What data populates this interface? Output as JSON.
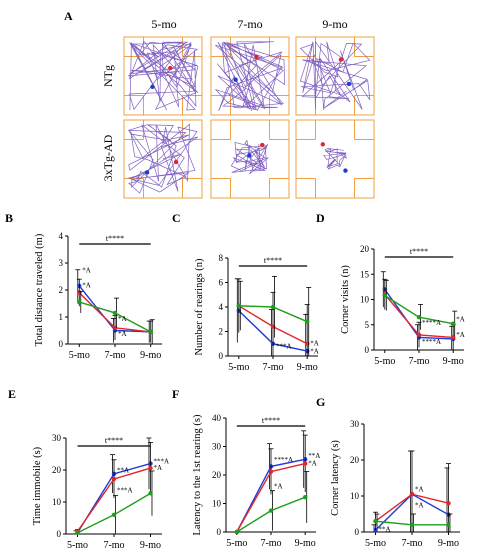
{
  "panelA": {
    "letter": "A",
    "ages": [
      "5-mo",
      "7-mo",
      "9-mo"
    ],
    "rows": [
      "NTg",
      "3xTg-AD"
    ]
  },
  "colors": {
    "blue": "#1f3bd6",
    "red": "#e0262b",
    "green": "#1e9e1e",
    "arena": "#f0a040",
    "path": "#8060c0"
  },
  "chart_data": [
    {
      "panel": "B",
      "type": "line",
      "ylabel": "Total distance traveled (m)",
      "categories": [
        "5-mo",
        "7-mo",
        "9-mo"
      ],
      "ylim": [
        0,
        4
      ],
      "yticks": [
        0,
        1,
        2,
        3,
        4
      ],
      "series": [
        {
          "color": "blue",
          "values": [
            2.15,
            0.5,
            0.45
          ],
          "err": [
            0.6,
            0.45,
            0.4
          ]
        },
        {
          "color": "red",
          "values": [
            1.9,
            0.6,
            0.45
          ],
          "err": [
            0.5,
            0.45,
            0.4
          ]
        },
        {
          "color": "green",
          "values": [
            1.55,
            1.15,
            0.45
          ],
          "err": [
            0.4,
            0.55,
            0.45
          ]
        }
      ],
      "sigbar": {
        "label": "t****"
      },
      "annotations": [
        {
          "text": "*A",
          "x": 0,
          "y": 2.65
        },
        {
          "text": "*A",
          "x": 0,
          "y": 2.1
        },
        {
          "text": "*A",
          "x": 1,
          "y": 0.85
        },
        {
          "text": "*A",
          "x": 1,
          "y": 0.3
        }
      ]
    },
    {
      "panel": "C",
      "type": "line",
      "ylabel": "Number of rearings (n)",
      "categories": [
        "5-mo",
        "7-mo",
        "9-mo"
      ],
      "ylim": [
        0,
        8
      ],
      "yticks": [
        0,
        2,
        4,
        6,
        8
      ],
      "series": [
        {
          "color": "blue",
          "values": [
            3.7,
            1.0,
            0.4
          ],
          "err": [
            2.6,
            2.8,
            3.0
          ]
        },
        {
          "color": "red",
          "values": [
            4.1,
            2.4,
            1.0
          ],
          "err": [
            2.2,
            2.8,
            3.2
          ]
        },
        {
          "color": "green",
          "values": [
            4.1,
            4.0,
            2.8
          ],
          "err": [
            2.0,
            2.5,
            2.8
          ]
        }
      ],
      "sigbar": {
        "label": "t****"
      },
      "annotations": [
        {
          "text": "***A",
          "x": 1,
          "y": 0.6
        },
        {
          "text": "*A",
          "x": 2,
          "y": 0.85
        },
        {
          "text": "*A",
          "x": 2,
          "y": 0.2
        }
      ]
    },
    {
      "panel": "D",
      "type": "line",
      "ylabel": "Corner visits (n)",
      "categories": [
        "5-mo",
        "7-mo",
        "9-mo"
      ],
      "ylim": [
        0,
        20
      ],
      "yticks": [
        0,
        5,
        10,
        15,
        20
      ],
      "series": [
        {
          "color": "blue",
          "values": [
            12.0,
            2.5,
            2.2
          ],
          "err": [
            3.5,
            2.5,
            2.5
          ]
        },
        {
          "color": "red",
          "values": [
            11.0,
            3.0,
            2.5
          ],
          "err": [
            3.0,
            2.5,
            2.5
          ]
        },
        {
          "color": "green",
          "values": [
            10.8,
            6.5,
            5.2
          ],
          "err": [
            3.0,
            2.5,
            2.5
          ]
        }
      ],
      "sigbar": {
        "label": "t****"
      },
      "annotations": [
        {
          "text": "****A",
          "x": 1,
          "y": 5.0
        },
        {
          "text": "****A",
          "x": 1,
          "y": 1.2
        },
        {
          "text": "*A",
          "x": 2,
          "y": 5.6
        },
        {
          "text": "*A",
          "x": 2,
          "y": 2.6
        }
      ]
    },
    {
      "panel": "E",
      "type": "line",
      "ylabel": "Time immobile (s)",
      "categories": [
        "5-mo",
        "7-mo",
        "9-mo"
      ],
      "ylim": [
        0,
        30
      ],
      "yticks": [
        0,
        10,
        20,
        30
      ],
      "series": [
        {
          "color": "blue",
          "values": [
            0.4,
            18.8,
            22.0
          ],
          "err": [
            0.6,
            6,
            8
          ]
        },
        {
          "color": "red",
          "values": [
            0.8,
            17.2,
            20.6
          ],
          "err": [
            0.6,
            6,
            8
          ]
        },
        {
          "color": "green",
          "values": [
            0.4,
            6.0,
            12.7
          ],
          "err": [
            0.4,
            6,
            7
          ]
        }
      ],
      "sigbar": {
        "label": "t****"
      },
      "annotations": [
        {
          "text": "**A",
          "x": 1,
          "y": 19.2
        },
        {
          "text": "***A",
          "x": 1,
          "y": 13.0
        },
        {
          "text": "***A",
          "x": 2,
          "y": 22.0
        },
        {
          "text": "*A",
          "x": 2,
          "y": 20.0
        }
      ]
    },
    {
      "panel": "F",
      "type": "line",
      "ylabel": "Latency to the 1st rearing (s)",
      "categories": [
        "5-mo",
        "7-mo",
        "9-mo"
      ],
      "ylim": [
        0,
        40
      ],
      "yticks": [
        0,
        10,
        20,
        30,
        40
      ],
      "series": [
        {
          "color": "blue",
          "values": [
            0,
            23,
            25.5
          ],
          "err": [
            0,
            8,
            10
          ]
        },
        {
          "color": "red",
          "values": [
            0,
            21.2,
            24.0
          ],
          "err": [
            0,
            8,
            10
          ]
        },
        {
          "color": "green",
          "values": [
            0,
            7.5,
            12.2
          ],
          "err": [
            0,
            7,
            9
          ]
        }
      ],
      "sigbar": {
        "label": "t****"
      },
      "annotations": [
        {
          "text": "****A",
          "x": 1,
          "y": 24.5
        },
        {
          "text": "*A",
          "x": 1,
          "y": 15.2
        },
        {
          "text": "**A",
          "x": 2,
          "y": 26.0
        },
        {
          "text": "*A",
          "x": 2,
          "y": 23.3
        }
      ]
    },
    {
      "panel": "G",
      "type": "line",
      "ylabel": "Corner latency (s)",
      "categories": [
        "5-mo",
        "7-mo",
        "9-mo"
      ],
      "ylim": [
        0,
        30
      ],
      "yticks": [
        0,
        10,
        20,
        30
      ],
      "series": [
        {
          "color": "blue",
          "values": [
            0.5,
            10.5,
            4.8
          ],
          "err": [
            1.5,
            12,
            13
          ]
        },
        {
          "color": "red",
          "values": [
            3.0,
            10.5,
            8.0
          ],
          "err": [
            2.5,
            12,
            11
          ]
        },
        {
          "color": "green",
          "values": [
            3.0,
            2.0,
            2.0
          ],
          "err": [
            2.0,
            3.0,
            3.0
          ]
        }
      ],
      "annotations": [
        {
          "text": "**A",
          "x": 0,
          "y": 0.2
        },
        {
          "text": "*A",
          "x": 1,
          "y": 11.2
        },
        {
          "text": "*A",
          "x": 1,
          "y": 6.8
        }
      ]
    }
  ]
}
